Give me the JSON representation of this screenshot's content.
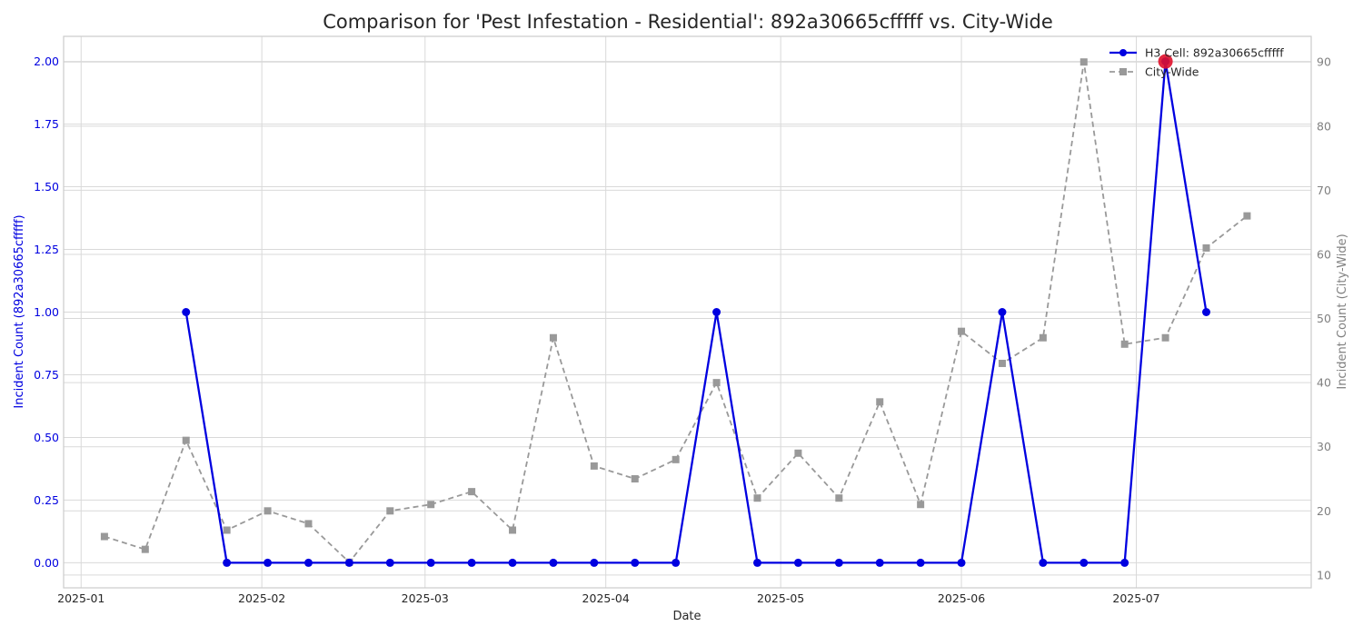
{
  "chart_data": {
    "type": "line",
    "title": "Comparison for 'Pest Infestation - Residential': 892a30665cfffff vs. City-Wide",
    "xlabel": "Date",
    "ylabel_left": "Incident Count (892a30665cfffff)",
    "ylabel_right": "Incident Count (City-Wide)",
    "ylim_left": [
      -0.1,
      2.1
    ],
    "ylim_right": [
      8,
      94
    ],
    "yticks_left": [
      0.0,
      0.25,
      0.5,
      0.75,
      1.0,
      1.25,
      1.5,
      1.75,
      2.0
    ],
    "yticks_left_labels": [
      "0.00",
      "0.25",
      "0.50",
      "0.75",
      "1.00",
      "1.25",
      "1.50",
      "1.75",
      "2.00"
    ],
    "yticks_right": [
      10,
      20,
      30,
      40,
      50,
      60,
      70,
      80,
      90
    ],
    "yticks_right_labels": [
      "10",
      "20",
      "30",
      "40",
      "50",
      "60",
      "70",
      "80",
      "90"
    ],
    "xlim": [
      "2024-12-29",
      "2025-07-31"
    ],
    "xticks": [
      "2025-01-01",
      "2025-02-01",
      "2025-03-01",
      "2025-04-01",
      "2025-05-01",
      "2025-06-01",
      "2025-07-01"
    ],
    "xtick_labels": [
      "2025-01",
      "2025-02",
      "2025-03",
      "2025-04",
      "2025-05",
      "2025-06",
      "2025-07"
    ],
    "grid": true,
    "legend_position": "top-right",
    "colors": {
      "cell": "#0000e0",
      "city": "#999999",
      "highlight": "#e0102a",
      "grid": "#d9d9d9",
      "spine": "#cccccc",
      "right_axis": "#808080"
    },
    "series": [
      {
        "name": "H3 Cell: 892a30665cfffff",
        "axis": "left",
        "x": [
          "2025-01-19",
          "2025-01-26",
          "2025-02-02",
          "2025-02-09",
          "2025-02-16",
          "2025-02-23",
          "2025-03-02",
          "2025-03-09",
          "2025-03-16",
          "2025-03-23",
          "2025-03-30",
          "2025-04-06",
          "2025-04-13",
          "2025-04-20",
          "2025-04-27",
          "2025-05-04",
          "2025-05-11",
          "2025-05-18",
          "2025-05-25",
          "2025-06-01",
          "2025-06-08",
          "2025-06-15",
          "2025-06-22",
          "2025-06-29",
          "2025-07-06",
          "2025-07-13"
        ],
        "values": [
          1,
          0,
          0,
          0,
          0,
          0,
          0,
          0,
          0,
          0,
          0,
          0,
          0,
          1,
          0,
          0,
          0,
          0,
          0,
          0,
          1,
          0,
          0,
          0,
          2,
          1
        ]
      },
      {
        "name": "City-Wide",
        "axis": "right",
        "x": [
          "2025-01-05",
          "2025-01-12",
          "2025-01-19",
          "2025-01-26",
          "2025-02-02",
          "2025-02-09",
          "2025-02-16",
          "2025-02-23",
          "2025-03-02",
          "2025-03-09",
          "2025-03-16",
          "2025-03-23",
          "2025-03-30",
          "2025-04-06",
          "2025-04-13",
          "2025-04-20",
          "2025-04-27",
          "2025-05-04",
          "2025-05-11",
          "2025-05-18",
          "2025-05-25",
          "2025-06-01",
          "2025-06-08",
          "2025-06-15",
          "2025-06-22",
          "2025-06-29",
          "2025-07-06",
          "2025-07-13",
          "2025-07-20"
        ],
        "values": [
          16,
          14,
          31,
          17,
          20,
          18,
          12,
          20,
          21,
          23,
          17,
          47,
          27,
          25,
          28,
          40,
          22,
          29,
          22,
          37,
          21,
          48,
          43,
          47,
          90,
          46,
          47,
          61,
          66
        ]
      }
    ],
    "highlight_point": {
      "x": "2025-07-06",
      "value": 2
    }
  }
}
